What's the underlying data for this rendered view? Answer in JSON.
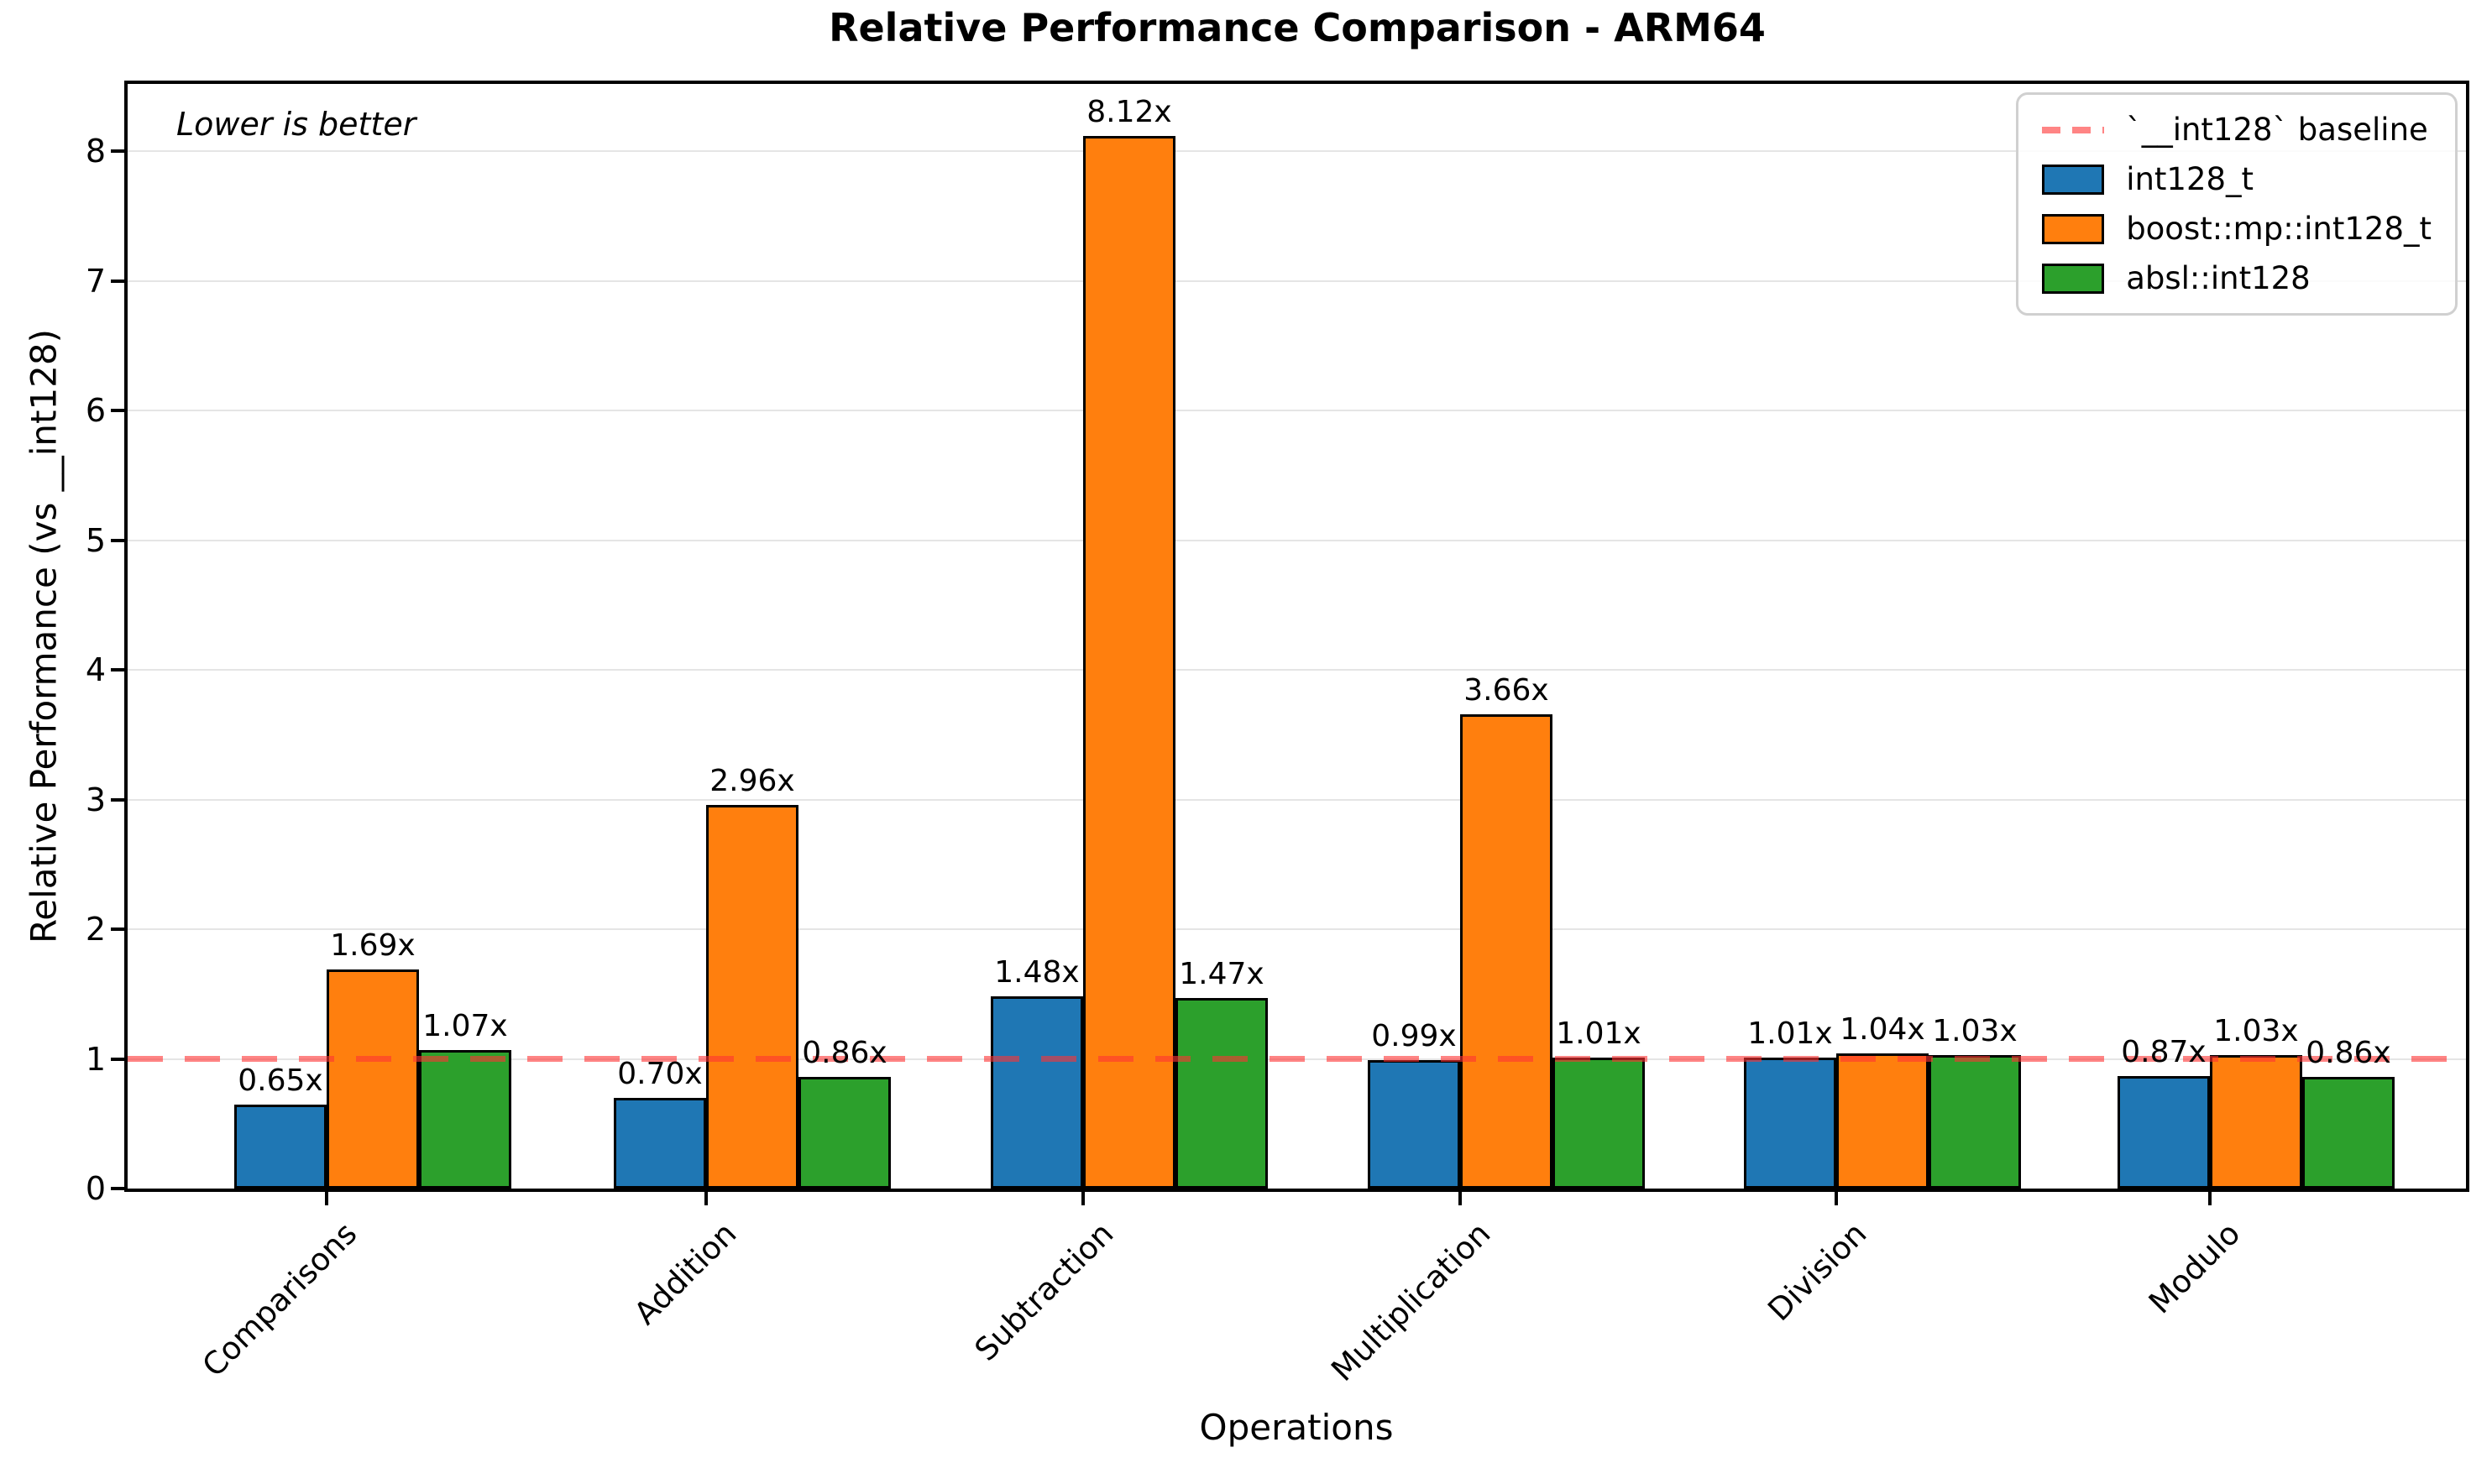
{
  "title": "Relative Performance Comparison - ARM64",
  "annotation": "Lower is better",
  "x_axis": {
    "label": "Operations",
    "categories": [
      "Comparisons",
      "Addition",
      "Subtraction",
      "Multiplication",
      "Division",
      "Modulo"
    ]
  },
  "y_axis": {
    "label": "Relative Performance (vs __int128)",
    "ticks": [
      "0",
      "1",
      "2",
      "3",
      "4",
      "5",
      "6",
      "7",
      "8"
    ]
  },
  "legend": {
    "position": "upper right",
    "entries": [
      {
        "type": "line",
        "label": "`__int128` baseline",
        "color": "#ff3333",
        "opacity": 0.6
      },
      {
        "type": "rect",
        "label": "int128_t",
        "color": "#1f77b4"
      },
      {
        "type": "rect",
        "label": "boost::mp::int128_t",
        "color": "#ff7f0e"
      },
      {
        "type": "rect",
        "label": "absl::int128",
        "color": "#2ca02c"
      }
    ]
  },
  "chart_data": {
    "type": "bar",
    "title": "Relative Performance Comparison - ARM64",
    "xlabel": "Operations",
    "ylabel": "Relative Performance (vs __int128)",
    "categories": [
      "Comparisons",
      "Addition",
      "Subtraction",
      "Multiplication",
      "Division",
      "Modulo"
    ],
    "series": [
      {
        "name": "int128_t",
        "color": "#1f77b4",
        "values": [
          0.65,
          0.7,
          1.48,
          0.99,
          1.01,
          0.87
        ],
        "labels": [
          "0.65x",
          "0.70x",
          "1.48x",
          "0.99x",
          "1.01x",
          "0.87x"
        ]
      },
      {
        "name": "boost::mp::int128_t",
        "color": "#ff7f0e",
        "values": [
          1.69,
          2.96,
          8.12,
          3.66,
          1.04,
          1.03
        ],
        "labels": [
          "1.69x",
          "2.96x",
          "8.12x",
          "3.66x",
          "1.04x",
          "1.03x"
        ]
      },
      {
        "name": "absl::int128",
        "color": "#2ca02c",
        "values": [
          1.07,
          0.86,
          1.47,
          1.01,
          1.03,
          0.86
        ],
        "labels": [
          "1.07x",
          "0.86x",
          "1.47x",
          "1.01x",
          "1.03x",
          "0.86x"
        ]
      }
    ],
    "baseline": {
      "value": 1.0,
      "label": "`__int128` baseline",
      "color": "#ff3333",
      "style": "dashed"
    },
    "ylim": [
      0,
      8.52
    ],
    "grid": "horizontal",
    "legend_position": "upper right",
    "annotation": "Lower is better"
  }
}
